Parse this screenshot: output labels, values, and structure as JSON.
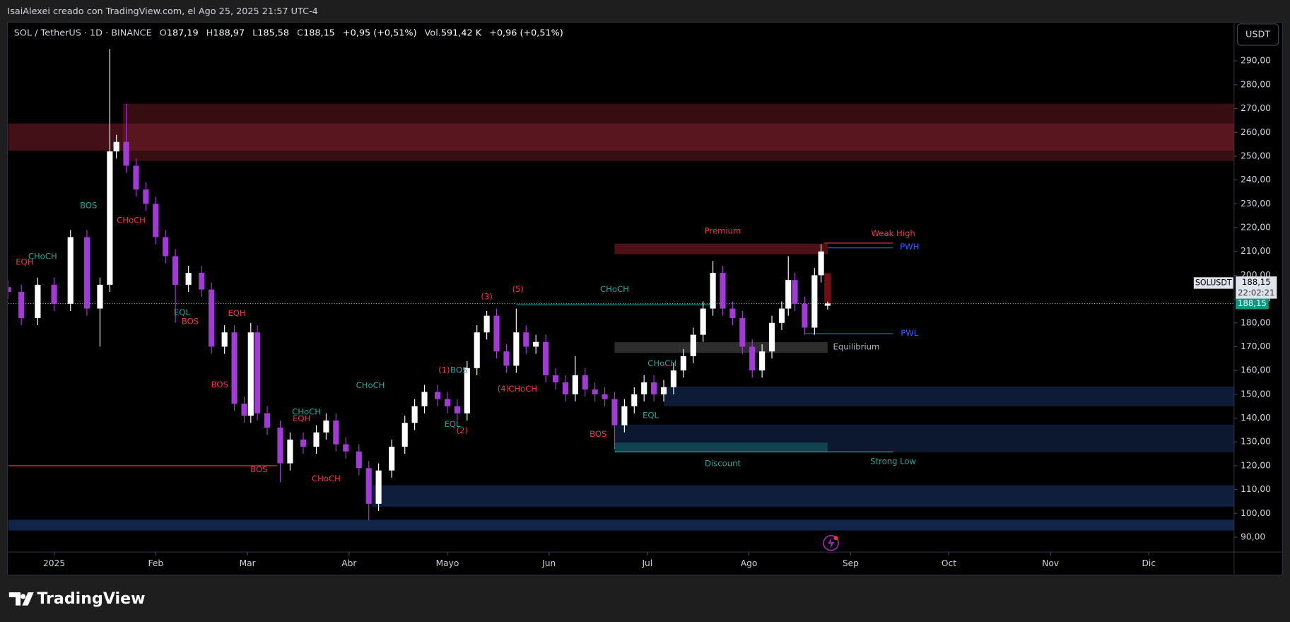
{
  "header": {
    "credit": "IsaiAlexei creado con TradingView.com, el Ago 25, 2025 21:57 UTC-4",
    "symbol": "SOL / TetherUS · 1D · BINANCE",
    "ohlc": [
      {
        "key": "O",
        "value": "187,19"
      },
      {
        "key": "H",
        "value": "188,97"
      },
      {
        "key": "L",
        "value": "185,58"
      },
      {
        "key": "C",
        "value": "188,15"
      }
    ],
    "change": "+0,95 (+0,51%)",
    "volume_key": "Vol.",
    "volume": "591,42 K",
    "volume_change": "+0,96 (+0,51%)"
  },
  "currency": "USDT",
  "price_box": {
    "symbol": "SOLUSDT",
    "price": "188,15",
    "countdown": "22:02:21"
  },
  "footer": {
    "brand": "TradingView"
  },
  "chart_data": {
    "type": "candlestick",
    "x": [
      -14,
      -10,
      -5,
      0,
      5,
      10,
      14,
      17,
      19,
      22,
      25,
      28,
      31,
      34,
      37,
      41,
      45,
      48,
      52,
      55,
      58,
      60,
      62,
      65,
      69,
      72,
      76,
      80,
      83,
      86,
      89,
      93,
      96,
      99,
      103,
      107,
      110,
      113,
      117,
      120,
      123,
      126,
      129,
      132,
      135,
      138,
      141,
      144,
      147,
      150,
      153,
      156,
      159,
      162,
      165,
      168,
      171,
      174,
      177,
      180,
      183,
      186,
      189,
      192,
      195,
      198,
      201,
      204,
      207,
      210,
      213,
      216,
      219,
      222,
      224,
      226,
      229,
      232,
      234,
      236
    ],
    "open": [
      195,
      193,
      182,
      196,
      188,
      216,
      186,
      196,
      252,
      256,
      246,
      236,
      230,
      216,
      208,
      196,
      201,
      194,
      170,
      176,
      146,
      141,
      176,
      142,
      136,
      121,
      131,
      128,
      134,
      139,
      129,
      126,
      119,
      104,
      118,
      128,
      138,
      145,
      151,
      148,
      145,
      142,
      161,
      176,
      183,
      168,
      162,
      176,
      170,
      172,
      158,
      155,
      150,
      158,
      152,
      150,
      148,
      137,
      145,
      150,
      155,
      150,
      153,
      160,
      166,
      175,
      186,
      201,
      186,
      182,
      170,
      160,
      168,
      180,
      186,
      198,
      188,
      178,
      200,
      187.19
    ],
    "high": [
      198,
      196,
      199,
      199,
      219,
      219,
      199,
      295,
      259,
      272,
      249,
      239,
      233,
      219,
      211,
      204,
      204,
      197,
      179,
      179,
      149,
      180,
      179,
      145,
      139,
      134,
      134,
      137,
      142,
      142,
      132,
      129,
      122,
      121,
      131,
      141,
      148,
      154,
      154,
      151,
      148,
      164,
      179,
      185,
      186,
      171,
      186,
      179,
      175,
      175,
      161,
      158,
      166,
      161,
      155,
      153,
      151,
      148,
      153,
      158,
      158,
      156,
      163,
      169,
      178,
      189,
      206,
      204,
      189,
      185,
      173,
      171,
      183,
      189,
      208,
      201,
      191,
      203,
      213,
      188.97
    ],
    "low": [
      190,
      179,
      179,
      185,
      185,
      183,
      170,
      193,
      249,
      243,
      233,
      227,
      213,
      205,
      180,
      193,
      191,
      167,
      167,
      143,
      138,
      138,
      139,
      133,
      113,
      118,
      125,
      125,
      131,
      126,
      123,
      116,
      97,
      101,
      115,
      125,
      135,
      142,
      145,
      142,
      139,
      139,
      158,
      173,
      165,
      159,
      159,
      167,
      167,
      155,
      152,
      147,
      147,
      149,
      147,
      145,
      127,
      134,
      142,
      147,
      147,
      147,
      150,
      157,
      163,
      172,
      183,
      183,
      179,
      167,
      157,
      157,
      165,
      177,
      183,
      185,
      175,
      175,
      197,
      185.58
    ],
    "close": [
      193,
      182,
      196,
      188,
      216,
      186,
      196,
      252,
      256,
      246,
      236,
      230,
      216,
      208,
      196,
      201,
      194,
      170,
      176,
      146,
      141,
      176,
      142,
      136,
      121,
      131,
      128,
      134,
      139,
      129,
      126,
      119,
      104,
      118,
      128,
      138,
      145,
      151,
      148,
      145,
      142,
      161,
      176,
      183,
      168,
      162,
      176,
      170,
      172,
      158,
      155,
      150,
      158,
      152,
      150,
      148,
      137,
      145,
      150,
      155,
      150,
      153,
      160,
      166,
      175,
      186,
      201,
      186,
      182,
      170,
      160,
      168,
      180,
      186,
      198,
      188,
      178,
      200,
      210,
      188.15
    ],
    "up_color": "#ffffff",
    "down_color": "#a23ad6",
    "xlim": [
      -14,
      360
    ],
    "ylim": [
      84.1,
      305.9
    ],
    "xticks": [
      {
        "value": 0,
        "label": "2025"
      },
      {
        "value": 31,
        "label": "Feb"
      },
      {
        "value": 59,
        "label": "Mar"
      },
      {
        "value": 90,
        "label": "Abr"
      },
      {
        "value": 120,
        "label": "Mayo"
      },
      {
        "value": 151,
        "label": "Jun"
      },
      {
        "value": 181,
        "label": "Jul"
      },
      {
        "value": 212,
        "label": "Ago"
      },
      {
        "value": 243,
        "label": "Sep"
      },
      {
        "value": 273,
        "label": "Oct"
      },
      {
        "value": 304,
        "label": "Nov"
      },
      {
        "value": 334,
        "label": "Dic"
      }
    ],
    "yticks": [
      {
        "value": 90,
        "label": "90,00"
      },
      {
        "value": 100,
        "label": "100,00"
      },
      {
        "value": 110,
        "label": "110,00"
      },
      {
        "value": 120,
        "label": "120,00"
      },
      {
        "value": 130,
        "label": "130,00"
      },
      {
        "value": 140,
        "label": "140,00"
      },
      {
        "value": 150,
        "label": "150,00"
      },
      {
        "value": 160,
        "label": "160,00"
      },
      {
        "value": 170,
        "label": "170,00"
      },
      {
        "value": 180,
        "label": "180,00"
      },
      {
        "value": 190,
        "label": "190,00"
      },
      {
        "value": 200,
        "label": "200,00"
      },
      {
        "value": 210,
        "label": "210,00"
      },
      {
        "value": 220,
        "label": "220,00"
      },
      {
        "value": 230,
        "label": "230,00"
      },
      {
        "value": 240,
        "label": "240,00"
      },
      {
        "value": 250,
        "label": "250,00"
      },
      {
        "value": 260,
        "label": "260,00"
      },
      {
        "value": 270,
        "label": "270,00"
      },
      {
        "value": 280,
        "label": "280,00"
      },
      {
        "value": 290,
        "label": "290,00"
      }
    ],
    "zones": [
      {
        "x": [
          21,
          360
        ],
        "y": [
          248,
          272
        ],
        "color": "rgba(120,30,40,0.45)"
      },
      {
        "x": [
          -14,
          360
        ],
        "y": [
          252.3,
          263.7
        ],
        "color": "rgba(120,30,40,0.55)"
      },
      {
        "x": [
          186,
          360
        ],
        "y": [
          145,
          153.2
        ],
        "color": "rgba(30,60,120,0.45)"
      },
      {
        "x": [
          171,
          360
        ],
        "y": [
          125.6,
          137.3
        ],
        "color": "rgba(30,60,120,0.4)"
      },
      {
        "x": [
          97,
          360
        ],
        "y": [
          102.8,
          111.8
        ],
        "color": "rgba(30,60,120,0.5)"
      },
      {
        "x": [
          -14,
          360
        ],
        "y": [
          92.8,
          97.3
        ],
        "color": "rgba(30,60,120,0.6)"
      },
      {
        "x": [
          171,
          236
        ],
        "y": [
          208.8,
          213.3
        ],
        "color": "rgba(140,30,40,0.55)"
      },
      {
        "x": [
          171,
          236
        ],
        "y": [
          167.4,
          171.9
        ],
        "color": "rgba(90,90,90,0.5)"
      },
      {
        "x": [
          171,
          236
        ],
        "y": [
          125.6,
          129.7
        ],
        "color": "rgba(20,110,110,0.5)"
      },
      {
        "x": [
          235,
          237
        ],
        "y": [
          188.4,
          200.9
        ],
        "color": "rgba(160,20,30,0.7)"
      }
    ],
    "levels": [
      {
        "x": [
          235,
          256
        ],
        "value": 213.5,
        "color": "#f23645"
      },
      {
        "x": [
          236,
          256
        ],
        "value": 211.5,
        "color": "#2962ff"
      },
      {
        "x": [
          229,
          256
        ],
        "value": 175.5,
        "color": "#2962ff"
      },
      {
        "x": [
          171,
          256
        ],
        "value": 125.8,
        "color": "#26a69a"
      },
      {
        "x": [
          -14,
          68
        ],
        "value": 120,
        "color": "#f23645"
      },
      {
        "x": [
          141,
          201
        ],
        "value": 187.6,
        "color": "#26a69a"
      }
    ],
    "annotations": [
      {
        "text": "BOS",
        "x": 10.5,
        "y": 229.2,
        "color": "#26a69a"
      },
      {
        "text": "CHoCH",
        "x": 23.5,
        "y": 223,
        "color": "#f23645"
      },
      {
        "text": "CHoCH",
        "x": -3.5,
        "y": 207.8,
        "color": "#26a69a"
      },
      {
        "text": "EQH",
        "x": -9,
        "y": 205.4,
        "color": "#f23645"
      },
      {
        "text": "EQL",
        "x": 39,
        "y": 184.3,
        "color": "#26a69a"
      },
      {
        "text": "EQH",
        "x": 55.75,
        "y": 184,
        "color": "#f23645"
      },
      {
        "text": "BOS",
        "x": 41.5,
        "y": 180.5,
        "color": "#f23645"
      },
      {
        "text": "BOS",
        "x": 50.5,
        "y": 153.9,
        "color": "#f23645"
      },
      {
        "text": "CHoCH",
        "x": 77,
        "y": 142.5,
        "color": "#26a69a"
      },
      {
        "text": "EQH",
        "x": 75.5,
        "y": 139.7,
        "color": "#f23645"
      },
      {
        "text": "BOS",
        "x": 62.5,
        "y": 118.3,
        "color": "#f23645"
      },
      {
        "text": "CHoCH",
        "x": 83,
        "y": 114.5,
        "color": "#f23645"
      },
      {
        "text": "CHoCH",
        "x": 96.5,
        "y": 153.6,
        "color": "#26a69a"
      },
      {
        "text": "(1)",
        "x": 119,
        "y": 160.1,
        "color": "#f23645"
      },
      {
        "text": "BOS",
        "x": 123.5,
        "y": 160.1,
        "color": "#26a69a"
      },
      {
        "text": "EQL",
        "x": 121.5,
        "y": 137.3,
        "color": "#26a69a"
      },
      {
        "text": "(2)",
        "x": 124.5,
        "y": 134.6,
        "color": "#f23645"
      },
      {
        "text": "(3)",
        "x": 132,
        "y": 190.9,
        "color": "#f23645"
      },
      {
        "text": "(5)",
        "x": 141.5,
        "y": 194,
        "color": "#f23645"
      },
      {
        "text": "(4)",
        "x": 137,
        "y": 152.2,
        "color": "#f23645"
      },
      {
        "text": "CHoCH",
        "x": 143,
        "y": 152.2,
        "color": "#f23645"
      },
      {
        "text": "CHoCH",
        "x": 171,
        "y": 194,
        "color": "#26a69a"
      },
      {
        "text": "CHoCH",
        "x": 185.5,
        "y": 162.9,
        "color": "#26a69a"
      },
      {
        "text": "EQL",
        "x": 182,
        "y": 141.1,
        "color": "#26a69a"
      },
      {
        "text": "BOS",
        "x": 166,
        "y": 133.2,
        "color": "#f23645"
      },
      {
        "text": "Premium",
        "x": 204,
        "y": 218.5,
        "color": "#f23645"
      },
      {
        "text": "Weak High",
        "x": 256,
        "y": 217.5,
        "color": "#f23645"
      },
      {
        "text": "PWH",
        "x": 261,
        "y": 211.9,
        "color": "#2962ff"
      },
      {
        "text": "PWL",
        "x": 261,
        "y": 175.7,
        "color": "#2962ff"
      },
      {
        "text": "Equilibrium",
        "x": 244.75,
        "y": 169.8,
        "color": "#b2b5be"
      },
      {
        "text": "Discount",
        "x": 204,
        "y": 120.8,
        "color": "#26a69a"
      },
      {
        "text": "Strong Low",
        "x": 256,
        "y": 121.8,
        "color": "#26a69a"
      }
    ],
    "last_price": {
      "value": 188.15,
      "label": "188,15",
      "color": "#089981"
    }
  }
}
